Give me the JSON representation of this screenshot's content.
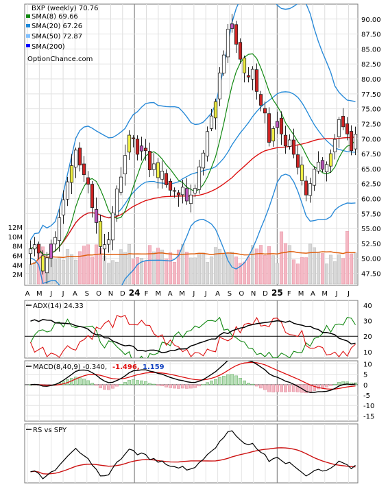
{
  "chart_data": [
    {
      "type": "candlestick",
      "panel": "price",
      "title": "BXP (weekly) 70.76",
      "watermark": "OptionChance.com",
      "legend": [
        {
          "label": "SMA(8) 69.66",
          "color": "#118811"
        },
        {
          "label": "SMA(20) 67.26",
          "color": "#1e88d8"
        },
        {
          "label": "SMA(50) 72.87",
          "color": "#7fc0ff"
        },
        {
          "label": "SMA(200)",
          "color": "#0000ff"
        }
      ],
      "legend_placement": "top-left",
      "ylim": [
        45.5,
        92.5
      ],
      "yticks": [
        "90.00",
        "87.50",
        "85.00",
        "82.50",
        "80.00",
        "77.50",
        "75.00",
        "72.50",
        "70.00",
        "67.50",
        "65.00",
        "62.50",
        "60.00",
        "57.50",
        "55.00",
        "52.50",
        "50.00",
        "47.50"
      ],
      "xtick_labels": [
        "A",
        "M",
        "J",
        "J",
        "A",
        "S",
        "O",
        "N",
        "D",
        "24",
        "F",
        "M",
        "A",
        "M",
        "J",
        "J",
        "A",
        "S",
        "O",
        "N",
        "D",
        "25",
        "F",
        "M",
        "A",
        "M",
        "J",
        "J"
      ],
      "grid": true,
      "close": [
        51.6,
        52.3,
        50.9,
        47.9,
        50.1,
        52.4,
        53.5,
        56.8,
        59.8,
        62.8,
        65.5,
        68.1,
        65.6,
        64.0,
        62.4,
        58.5,
        56.0,
        52.0,
        52.3,
        53.1,
        57.6,
        61.6,
        63.6,
        67.2,
        70.6,
        70.0,
        67.4,
        68.8,
        68.0,
        64.8,
        65.8,
        63.5,
        64.6,
        62.3,
        61.4,
        61.3,
        60.6,
        61.9,
        59.6,
        60.6,
        61.7,
        65.3,
        67.6,
        71.2,
        73.8,
        76.2,
        81.0,
        84.0,
        88.3,
        89.2,
        85.8,
        83.3,
        81.0,
        80.3,
        81.6,
        77.9,
        75.6,
        74.3,
        69.4,
        71.7,
        72.9,
        70.8,
        68.8,
        69.8,
        67.4,
        65.2,
        63.0,
        60.6,
        62.5,
        64.9,
        66.1,
        64.9,
        65.7,
        67.5,
        69.9,
        73.2,
        72.0,
        70.8,
        68.0,
        70.76
      ],
      "volume_axis": {
        "ylim": [
          0,
          13000000
        ],
        "ticks": [
          "2M",
          "4M",
          "6M",
          "8M",
          "10M",
          "12M"
        ]
      },
      "volume_avg_color": "#e06010"
    },
    {
      "type": "line",
      "panel": "adx",
      "title": "ADX(14) 24.33",
      "ylim": [
        6,
        43
      ],
      "yticks": [
        "40",
        "30",
        "20",
        "10"
      ],
      "series_colors": {
        "adx": "#000000",
        "plus_di": "#118811",
        "minus_di": "#dd1111"
      }
    },
    {
      "type": "bar+line",
      "panel": "macd",
      "title": "MACD(8,40,9) -0.340,",
      "labels": [
        {
          "text": "-1.496,",
          "color": "#e01010"
        },
        {
          "text": "1.159",
          "color": "#1040c0"
        }
      ],
      "ylim": [
        -17.5,
        11.5
      ],
      "yticks": [
        "10",
        "5",
        "0",
        "-5",
        "-10",
        "-15"
      ]
    },
    {
      "type": "line",
      "panel": "relative-strength",
      "title": "RS vs SPY",
      "series_colors": {
        "ratio": "#000000",
        "average": "#cc1111"
      }
    }
  ]
}
